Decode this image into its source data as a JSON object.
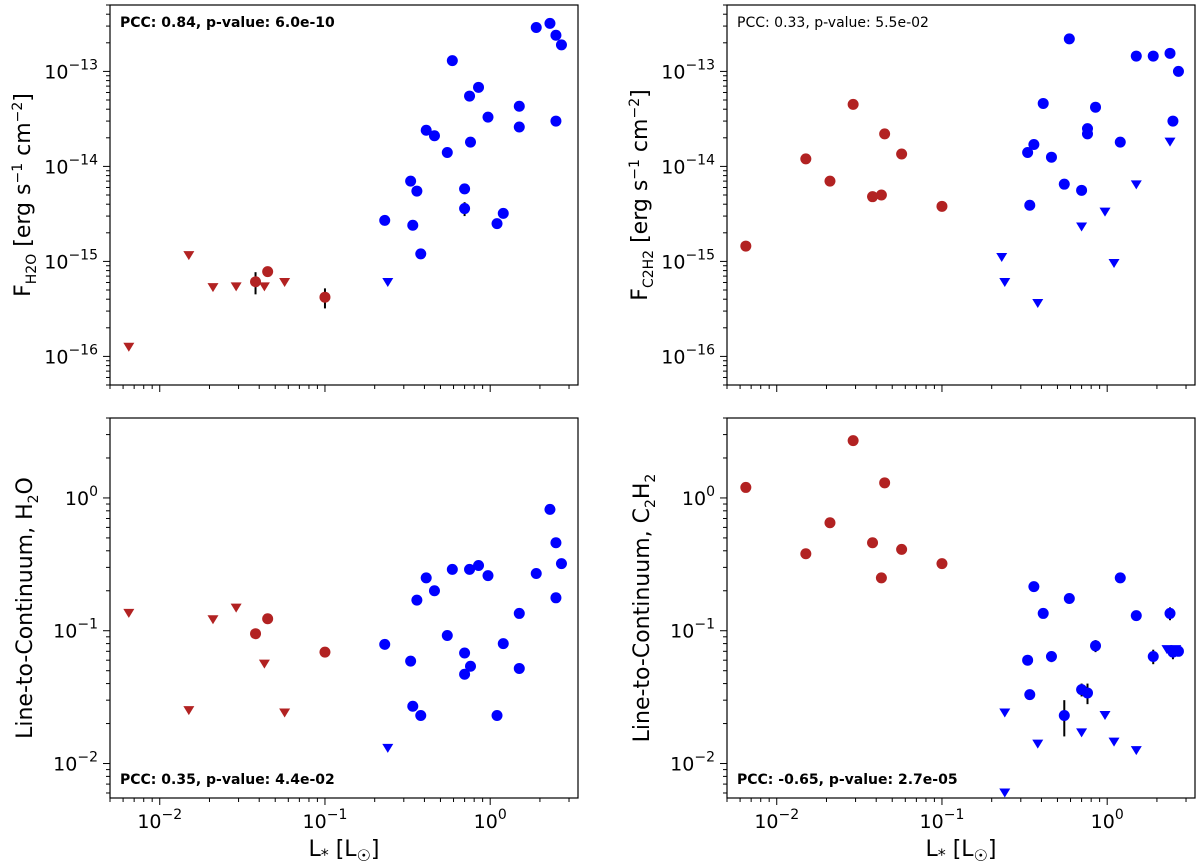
{
  "colors": {
    "red": "#b22222",
    "blue": "#0000ff",
    "err": "#000000"
  },
  "chart_data": [
    {
      "type": "scatter",
      "id": "top-left",
      "ylabel": "F_H2O [erg s^-1 cm^-2]",
      "xlabel": "",
      "xlim": [
        0.005,
        3.4
      ],
      "ylim": [
        5e-17,
        5e-13
      ],
      "xscale": "log",
      "yscale": "log",
      "annotation": "PCC: 0.84, p-value: 6.0e-10",
      "annotation_bold": true,
      "annotation_pos": "top-left",
      "series": [
        {
          "name": "red-detection",
          "marker": "circle",
          "color": "#b22222",
          "points": [
            [
              0.038,
              6.1e-16,
              1.6e-16
            ],
            [
              0.045,
              7.8e-16,
              0
            ],
            [
              0.1,
              4.2e-16,
              1e-16
            ]
          ]
        },
        {
          "name": "red-upper-limit",
          "marker": "triangle-down",
          "color": "#b22222",
          "points": [
            [
              0.0065,
              1.25e-16
            ],
            [
              0.015,
              1.15e-15
            ],
            [
              0.021,
              5.3e-16
            ],
            [
              0.029,
              5.4e-16
            ],
            [
              0.043,
              5.4e-16
            ],
            [
              0.057,
              6e-16
            ]
          ]
        },
        {
          "name": "blue-detection",
          "marker": "circle",
          "color": "#0000ff",
          "points": [
            [
              0.23,
              2.7e-15,
              0
            ],
            [
              0.33,
              7e-15,
              0
            ],
            [
              0.34,
              2.4e-15,
              0
            ],
            [
              0.36,
              5.5e-15,
              0
            ],
            [
              0.38,
              1.2e-15,
              0
            ],
            [
              0.41,
              2.4e-14,
              0
            ],
            [
              0.46,
              2.1e-14,
              0
            ],
            [
              0.55,
              1.4e-14,
              0
            ],
            [
              0.59,
              1.3e-13,
              0
            ],
            [
              0.7,
              5.8e-15,
              0
            ],
            [
              0.7,
              3.6e-15,
              6e-16
            ],
            [
              0.75,
              5.5e-14,
              0
            ],
            [
              0.76,
              1.8e-14,
              0
            ],
            [
              0.85,
              6.8e-14,
              0
            ],
            [
              0.97,
              3.3e-14,
              0
            ],
            [
              1.1,
              2.5e-15,
              0
            ],
            [
              1.2,
              3.2e-15,
              0
            ],
            [
              1.5,
              4.3e-14,
              0
            ],
            [
              1.5,
              2.6e-14,
              0
            ],
            [
              1.9,
              2.9e-13,
              0
            ],
            [
              2.3,
              3.2e-13,
              0
            ],
            [
              2.5,
              2.4e-13,
              0
            ],
            [
              2.5,
              3e-14,
              0
            ],
            [
              2.7,
              1.9e-13,
              0
            ]
          ]
        },
        {
          "name": "blue-upper-limit",
          "marker": "triangle-down",
          "color": "#0000ff",
          "points": [
            [
              0.24,
              6e-16
            ]
          ]
        }
      ]
    },
    {
      "type": "scatter",
      "id": "top-right",
      "ylabel": "F_C2H2 [erg s^-1 cm^-2]",
      "xlabel": "",
      "xlim": [
        0.005,
        3.4
      ],
      "ylim": [
        5e-17,
        5e-13
      ],
      "xscale": "log",
      "yscale": "log",
      "annotation": "PCC: 0.33, p-value: 5.5e-02",
      "annotation_bold": false,
      "annotation_pos": "top-left",
      "series": [
        {
          "name": "red-detection",
          "marker": "circle",
          "color": "#b22222",
          "points": [
            [
              0.0065,
              1.45e-15,
              0
            ],
            [
              0.015,
              1.2e-14,
              0
            ],
            [
              0.021,
              7e-15,
              0
            ],
            [
              0.029,
              4.5e-14,
              0
            ],
            [
              0.038,
              4.8e-15,
              0
            ],
            [
              0.043,
              5e-15,
              0
            ],
            [
              0.045,
              2.2e-14,
              0
            ],
            [
              0.057,
              1.35e-14,
              0
            ],
            [
              0.1,
              3.8e-15,
              0
            ]
          ]
        },
        {
          "name": "blue-detection",
          "marker": "circle",
          "color": "#0000ff",
          "points": [
            [
              0.33,
              1.4e-14,
              0
            ],
            [
              0.34,
              3.9e-15,
              0
            ],
            [
              0.36,
              1.7e-14,
              0
            ],
            [
              0.41,
              4.6e-14,
              0
            ],
            [
              0.46,
              1.25e-14,
              0
            ],
            [
              0.55,
              6.5e-15,
              0
            ],
            [
              0.59,
              2.2e-13,
              0
            ],
            [
              0.7,
              5.6e-15,
              0
            ],
            [
              0.76,
              2.5e-14,
              0
            ],
            [
              0.76,
              2.2e-14,
              0
            ],
            [
              0.85,
              4.2e-14,
              0
            ],
            [
              1.2,
              1.8e-14,
              0
            ],
            [
              1.5,
              1.45e-13,
              0
            ],
            [
              1.9,
              1.45e-13,
              0
            ],
            [
              2.4,
              1.55e-13,
              0
            ],
            [
              2.5,
              3e-14,
              0
            ],
            [
              2.7,
              1e-13,
              0
            ]
          ]
        },
        {
          "name": "blue-upper-limit",
          "marker": "triangle-down",
          "color": "#0000ff",
          "points": [
            [
              0.23,
              1.1e-15
            ],
            [
              0.24,
              6e-16
            ],
            [
              0.38,
              3.6e-16
            ],
            [
              0.7,
              2.3e-15
            ],
            [
              0.97,
              3.3e-15
            ],
            [
              1.1,
              9.5e-16
            ],
            [
              1.5,
              6.4e-15
            ],
            [
              2.4,
              1.8e-14
            ]
          ]
        }
      ]
    },
    {
      "type": "scatter",
      "id": "bottom-left",
      "ylabel": "Line-to-Continuum, H2O",
      "xlabel": "L* [L☉]",
      "xlim": [
        0.005,
        3.4
      ],
      "ylim": [
        0.0055,
        4.0
      ],
      "xscale": "log",
      "yscale": "log",
      "annotation": "PCC: 0.35, p-value: 4.4e-02",
      "annotation_bold": true,
      "annotation_pos": "bottom-left",
      "series": [
        {
          "name": "red-detection",
          "marker": "circle",
          "color": "#b22222",
          "points": [
            [
              0.038,
              0.095,
              0
            ],
            [
              0.045,
              0.123,
              0
            ],
            [
              0.1,
              0.069,
              0
            ]
          ]
        },
        {
          "name": "red-upper-limit",
          "marker": "triangle-down",
          "color": "#b22222",
          "points": [
            [
              0.0065,
              0.135
            ],
            [
              0.015,
              0.025
            ],
            [
              0.021,
              0.121
            ],
            [
              0.029,
              0.148
            ],
            [
              0.043,
              0.056
            ],
            [
              0.057,
              0.024
            ]
          ]
        },
        {
          "name": "blue-detection",
          "marker": "circle",
          "color": "#0000ff",
          "points": [
            [
              0.23,
              0.079,
              0
            ],
            [
              0.33,
              0.059,
              0
            ],
            [
              0.34,
              0.027,
              0
            ],
            [
              0.36,
              0.17,
              0
            ],
            [
              0.38,
              0.023,
              0
            ],
            [
              0.41,
              0.25,
              0
            ],
            [
              0.46,
              0.2,
              0
            ],
            [
              0.55,
              0.092,
              0
            ],
            [
              0.59,
              0.29,
              0
            ],
            [
              0.7,
              0.068,
              0
            ],
            [
              0.7,
              0.047,
              0
            ],
            [
              0.75,
              0.29,
              0
            ],
            [
              0.76,
              0.054,
              0
            ],
            [
              0.85,
              0.31,
              0
            ],
            [
              0.97,
              0.26,
              0
            ],
            [
              1.1,
              0.023,
              0
            ],
            [
              1.2,
              0.08,
              0
            ],
            [
              1.5,
              0.135,
              0
            ],
            [
              1.5,
              0.052,
              0
            ],
            [
              1.9,
              0.27,
              0
            ],
            [
              2.3,
              0.82,
              0
            ],
            [
              2.5,
              0.46,
              0
            ],
            [
              2.5,
              0.177,
              0
            ],
            [
              2.7,
              0.32,
              0
            ]
          ]
        },
        {
          "name": "blue-upper-limit",
          "marker": "triangle-down",
          "color": "#0000ff",
          "points": [
            [
              0.24,
              0.013
            ]
          ]
        }
      ]
    },
    {
      "type": "scatter",
      "id": "bottom-right",
      "ylabel": "Line-to-Continuum, C2H2",
      "xlabel": "L* [L☉]",
      "xlim": [
        0.005,
        3.4
      ],
      "ylim": [
        0.0055,
        4.0
      ],
      "xscale": "log",
      "yscale": "log",
      "annotation": "PCC: -0.65, p-value: 2.7e-05",
      "annotation_bold": true,
      "annotation_pos": "bottom-left",
      "series": [
        {
          "name": "red-detection",
          "marker": "circle",
          "color": "#b22222",
          "points": [
            [
              0.0065,
              1.2,
              0
            ],
            [
              0.015,
              0.38,
              0
            ],
            [
              0.021,
              0.65,
              0
            ],
            [
              0.029,
              2.7,
              0
            ],
            [
              0.038,
              0.46,
              0
            ],
            [
              0.043,
              0.25,
              0
            ],
            [
              0.045,
              1.3,
              0
            ],
            [
              0.057,
              0.41,
              0
            ],
            [
              0.1,
              0.32,
              0
            ]
          ]
        },
        {
          "name": "blue-detection",
          "marker": "circle",
          "color": "#0000ff",
          "points": [
            [
              0.33,
              0.06,
              0
            ],
            [
              0.34,
              0.033,
              0
            ],
            [
              0.36,
              0.215,
              0
            ],
            [
              0.41,
              0.135,
              0
            ],
            [
              0.46,
              0.064,
              0.006
            ],
            [
              0.55,
              0.023,
              0.007
            ],
            [
              0.59,
              0.175,
              0
            ],
            [
              0.7,
              0.036,
              0.004
            ],
            [
              0.76,
              0.034,
              0.006
            ],
            [
              0.85,
              0.077,
              0.008
            ],
            [
              1.2,
              0.25,
              0
            ],
            [
              1.5,
              0.13,
              0
            ],
            [
              1.9,
              0.064,
              0.008
            ],
            [
              2.4,
              0.135,
              0.015
            ],
            [
              2.5,
              0.069,
              0.008
            ],
            [
              2.7,
              0.07,
              0
            ]
          ]
        },
        {
          "name": "blue-upper-limit",
          "marker": "triangle-down",
          "color": "#0000ff",
          "points": [
            [
              0.24,
              0.024
            ],
            [
              0.24,
              0.006
            ],
            [
              0.38,
              0.014
            ],
            [
              0.7,
              0.017
            ],
            [
              0.97,
              0.023
            ],
            [
              1.1,
              0.0145
            ],
            [
              1.5,
              0.0125
            ],
            [
              2.3,
              0.072
            ],
            [
              2.6,
              0.072
            ]
          ]
        }
      ]
    }
  ]
}
